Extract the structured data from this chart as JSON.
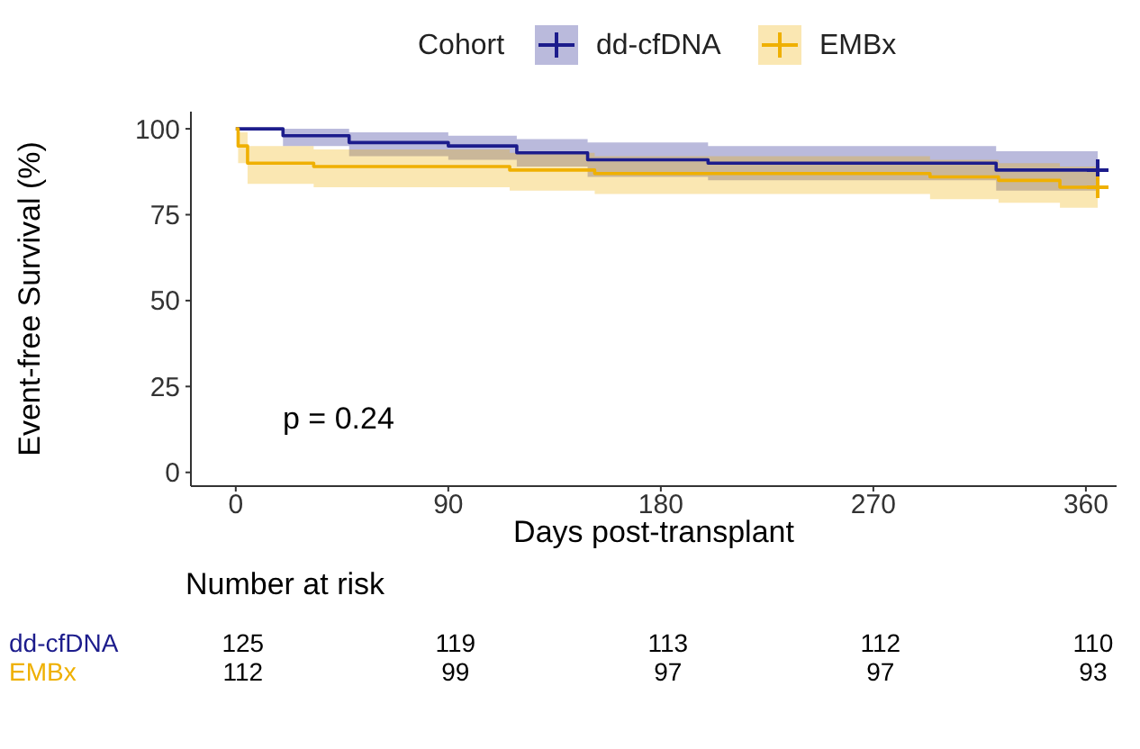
{
  "chart_data": [
    {
      "type": "step",
      "xlabel": "Days post-transplant",
      "ylabel": "Event-free Survival (%)",
      "legend_title": "Cohort",
      "legend": "top",
      "xlim": [
        -19,
        373
      ],
      "ylim": [
        -4,
        105
      ],
      "xticks": [
        0,
        90,
        180,
        270,
        360
      ],
      "yticks": [
        0,
        25,
        50,
        75,
        100
      ],
      "annotations": [
        "p = 0.24"
      ],
      "series": [
        {
          "name": "dd-cfDNA",
          "color": "#1c1c8c",
          "x": [
            0,
            20,
            48,
            90,
            119,
            149,
            200,
            322,
            365
          ],
          "values": [
            100,
            98,
            96,
            95,
            93,
            91,
            90,
            88,
            88
          ],
          "lower": [
            100,
            95,
            92,
            91,
            89,
            86,
            85,
            82,
            82
          ],
          "upper": [
            100,
            100,
            99,
            98,
            97,
            96,
            95,
            93.5,
            93.5
          ]
        },
        {
          "name": "EMBx",
          "color": "#efb000",
          "x": [
            0,
            1,
            5,
            33,
            116,
            152,
            294,
            323,
            349,
            365
          ],
          "values": [
            100,
            95,
            90,
            89,
            88,
            87,
            86,
            85,
            83,
            83
          ],
          "lower": [
            100,
            90,
            84,
            83,
            82,
            81,
            79.5,
            78.5,
            77,
            77
          ],
          "upper": [
            100,
            99,
            95,
            94,
            93,
            92,
            91,
            90,
            89,
            89
          ]
        },
        {
          "type": "scatter",
          "marker": "cross",
          "color": "#1c1c8c",
          "x": [
            365
          ],
          "values": [
            88
          ]
        },
        {
          "type": "scatter",
          "marker": "cross",
          "color": "#efb000",
          "x": [
            365
          ],
          "values": [
            83
          ]
        }
      ]
    },
    {
      "type": "other",
      "title": "Number at risk",
      "annotations": [
        "dd-cfDNA",
        "125",
        "119",
        "113",
        "112",
        "110",
        "EMBx",
        "112",
        "99",
        "97",
        "97",
        "93"
      ]
    }
  ]
}
